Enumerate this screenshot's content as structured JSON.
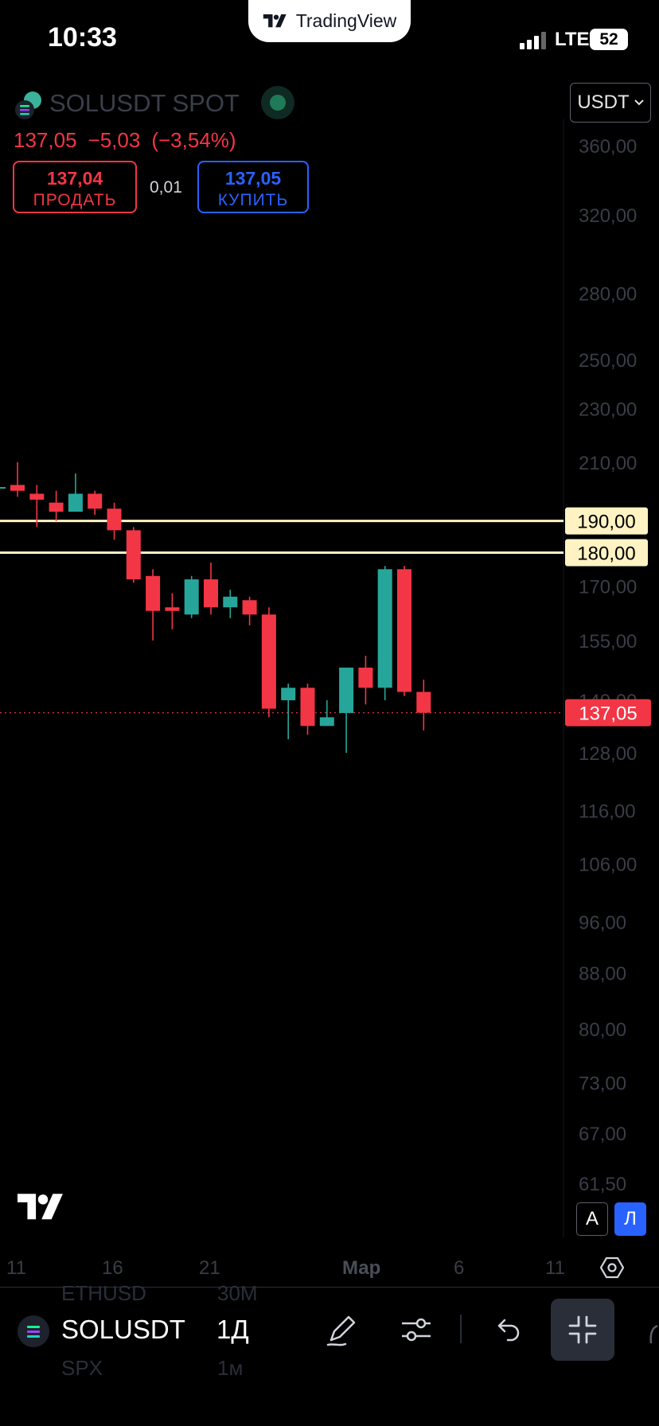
{
  "status_bar": {
    "time": "10:33",
    "network": "LTE",
    "battery": "52"
  },
  "app_pill": {
    "label": "TradingView",
    "icon": "tradingview-logo-icon"
  },
  "header": {
    "symbol_title": "SOLUSDT SPOT",
    "last_price": "137,05",
    "change": "−5,03",
    "change_percent": "(−3,54%)",
    "sell_price": "137,04",
    "sell_label": "ПРОДАТЬ",
    "spread": "0,01",
    "buy_price": "137,05",
    "buy_label": "КУПИТЬ",
    "currency": "USDT"
  },
  "colors": {
    "up": "#26a69a",
    "down": "#f23645",
    "level_line": "#fff3c4",
    "price_label_bg": "#f23645",
    "accent_blue": "#2962ff"
  },
  "chart_data": {
    "type": "candlestick",
    "scale": "log",
    "ylim": [
      58,
      380
    ],
    "y_ticks": [
      "360,00",
      "320,00",
      "280,00",
      "250,00",
      "230,00",
      "210,00",
      "170,00",
      "155,00",
      "140,00",
      "128,00",
      "116,00",
      "106,00",
      "96,00",
      "88,00",
      "80,00",
      "73,00",
      "67,00",
      "61,50"
    ],
    "x_ticks": [
      "11",
      "16",
      "21",
      "Мар",
      "6",
      "11"
    ],
    "horizontal_levels": [
      {
        "value": 190,
        "label": "190,00"
      },
      {
        "value": 180,
        "label": "180,00"
      }
    ],
    "current_price": {
      "value": 137.05,
      "label": "137,05"
    },
    "candles": [
      {
        "o": 202,
        "h": 210,
        "l": 198,
        "c": 200
      },
      {
        "o": 199,
        "h": 202,
        "l": 188,
        "c": 197
      },
      {
        "o": 196,
        "h": 200,
        "l": 190,
        "c": 193
      },
      {
        "o": 193,
        "h": 206,
        "l": 193,
        "c": 199
      },
      {
        "o": 199,
        "h": 200,
        "l": 192,
        "c": 194
      },
      {
        "o": 194,
        "h": 196,
        "l": 184,
        "c": 187
      },
      {
        "o": 187,
        "h": 188,
        "l": 171,
        "c": 172
      },
      {
        "o": 173,
        "h": 175,
        "l": 155,
        "c": 163
      },
      {
        "o": 164,
        "h": 168,
        "l": 158,
        "c": 163
      },
      {
        "o": 162,
        "h": 173,
        "l": 161,
        "c": 172
      },
      {
        "o": 172,
        "h": 177,
        "l": 162,
        "c": 164
      },
      {
        "o": 164,
        "h": 169,
        "l": 161,
        "c": 167
      },
      {
        "o": 166,
        "h": 167,
        "l": 159,
        "c": 162
      },
      {
        "o": 162,
        "h": 164,
        "l": 136,
        "c": 138
      },
      {
        "o": 140,
        "h": 144,
        "l": 131,
        "c": 143
      },
      {
        "o": 143,
        "h": 144,
        "l": 132,
        "c": 134
      },
      {
        "o": 134,
        "h": 140,
        "l": 134,
        "c": 136
      },
      {
        "o": 137,
        "h": 148,
        "l": 128,
        "c": 148
      },
      {
        "o": 148,
        "h": 151,
        "l": 139,
        "c": 143
      },
      {
        "o": 143,
        "h": 176,
        "l": 140,
        "c": 175
      },
      {
        "o": 175,
        "h": 176,
        "l": 141,
        "c": 142
      },
      {
        "o": 142,
        "h": 145,
        "l": 133,
        "c": 137.05
      }
    ]
  },
  "scale_buttons": {
    "auto": "A",
    "log": "Л"
  },
  "bottom_toolbar": {
    "symbol": "SOLUSDT",
    "interval": "1Д",
    "ghost_symbol_1": "ETHUSD",
    "ghost_interval_1": "30М",
    "ghost_symbol_2": "SPX",
    "ghost_interval_2": "1м"
  }
}
